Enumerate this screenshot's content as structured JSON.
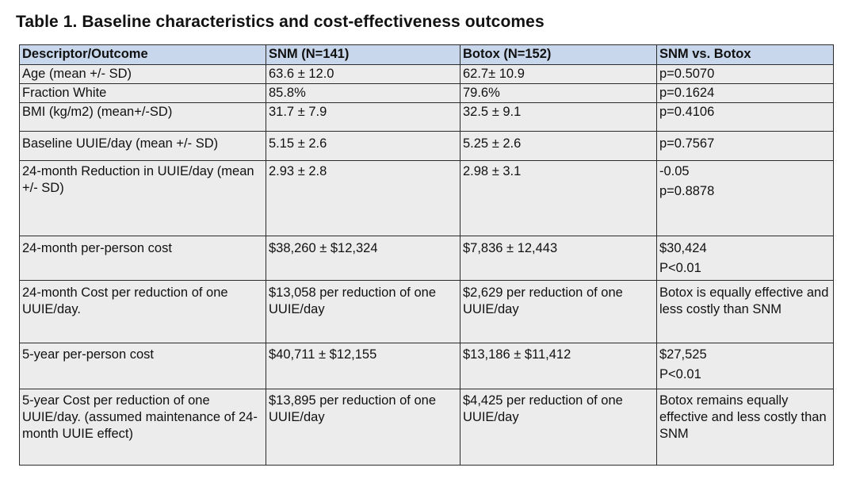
{
  "title": "Table 1. Baseline characteristics and cost-effectiveness outcomes",
  "table": {
    "headers": [
      "Descriptor/Outcome",
      "SNM (N=141)",
      "Botox (N=152)",
      "SNM vs. Botox"
    ],
    "rows": [
      {
        "descriptor": "Age (mean +/- SD)",
        "snm": "63.6 ± 12.0",
        "botox": "62.7± 10.9",
        "comparison": [
          "p=0.5070"
        ]
      },
      {
        "descriptor": "Fraction White",
        "snm": "85.8%",
        "botox": "79.6%",
        "comparison": [
          "p=0.1624"
        ]
      },
      {
        "descriptor": "BMI (kg/m2) (mean+/-SD)",
        "snm": "31.7 ± 7.9",
        "botox": "32.5 ± 9.1",
        "comparison": [
          "p=0.4106"
        ]
      },
      {
        "descriptor": "Baseline UUIE/day (mean +/- SD)",
        "snm": "5.15 ± 2.6",
        "botox": "5.25 ± 2.6",
        "comparison": [
          "p=0.7567"
        ]
      },
      {
        "descriptor": "24-month Reduction in UUIE/day (mean +/- SD)",
        "snm": "2.93 ± 2.8",
        "botox": "2.98 ± 3.1",
        "comparison": [
          "-0.05",
          "p=0.8878"
        ]
      },
      {
        "descriptor": "24-month per-person cost",
        "snm": "$38,260 ± $12,324",
        "botox": "$7,836 ± 12,443",
        "comparison": [
          "$30,424",
          "P<0.01"
        ]
      },
      {
        "descriptor": "24-month Cost per reduction of one UUIE/day.",
        "snm": "$13,058 per reduction of one UUIE/day",
        "botox": "$2,629 per reduction of one UUIE/day",
        "comparison": [
          "Botox is equally effective and less costly than SNM"
        ]
      },
      {
        "descriptor": "5-year per-person cost",
        "snm": "$40,711 ± $12,155",
        "botox": "$13,186 ± $11,412",
        "comparison": [
          "$27,525",
          "P<0.01"
        ]
      },
      {
        "descriptor": "5-year Cost per reduction of one UUIE/day. (assumed maintenance of 24-month UUIE effect)",
        "snm": "$13,895 per reduction of one UUIE/day",
        "botox": "$4,425 per reduction of one UUIE/day",
        "comparison": [
          "Botox remains equally effective and less costly than SNM"
        ]
      }
    ]
  }
}
